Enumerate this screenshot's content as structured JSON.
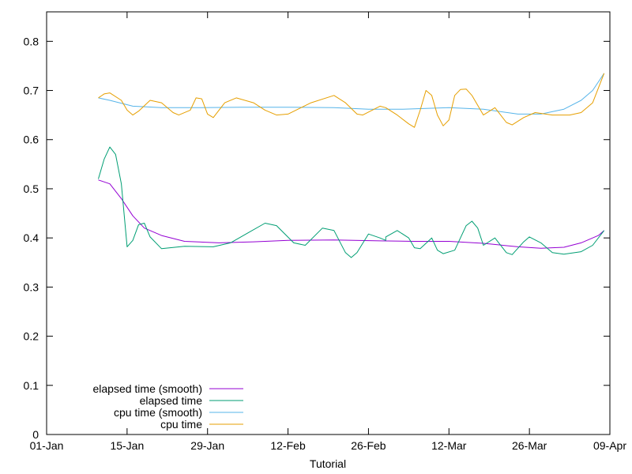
{
  "chart_data": {
    "type": "line",
    "xlabel": "Tutorial",
    "ylabel": "",
    "x_tick_labels": [
      "01-Jan",
      "15-Jan",
      "29-Jan",
      "12-Feb",
      "26-Feb",
      "12-Mar",
      "26-Mar",
      "09-Apr"
    ],
    "y_tick_labels": [
      "0",
      "0.1",
      "0.2",
      "0.3",
      "0.4",
      "0.5",
      "0.6",
      "0.7",
      "0.8"
    ],
    "y_ticks": [
      0,
      0.1,
      0.2,
      0.3,
      0.4,
      0.5,
      0.6,
      0.7,
      0.8
    ],
    "xlim": [
      "2023-01-01",
      "2023-04-09"
    ],
    "ylim": [
      0,
      0.86
    ],
    "grid": false,
    "legend_position": "bottom-left",
    "series": [
      {
        "name": "elapsed time (smooth)",
        "color": "#9400d3",
        "points": [
          [
            "2023-01-10",
            0.518
          ],
          [
            "2023-01-12",
            0.51
          ],
          [
            "2023-01-14",
            0.48
          ],
          [
            "2023-01-16",
            0.445
          ],
          [
            "2023-01-18",
            0.42
          ],
          [
            "2023-01-21",
            0.405
          ],
          [
            "2023-01-25",
            0.393
          ],
          [
            "2023-01-31",
            0.39
          ],
          [
            "2023-02-06",
            0.392
          ],
          [
            "2023-02-12",
            0.395
          ],
          [
            "2023-02-20",
            0.396
          ],
          [
            "2023-02-28",
            0.394
          ],
          [
            "2023-03-06",
            0.393
          ],
          [
            "2023-03-12",
            0.393
          ],
          [
            "2023-03-18",
            0.389
          ],
          [
            "2023-03-24",
            0.382
          ],
          [
            "2023-03-28",
            0.379
          ],
          [
            "2023-04-01",
            0.381
          ],
          [
            "2023-04-04",
            0.39
          ],
          [
            "2023-04-07",
            0.405
          ],
          [
            "2023-04-08",
            0.415
          ]
        ]
      },
      {
        "name": "elapsed time",
        "color": "#009e73",
        "points": [
          [
            "2023-01-10",
            0.52
          ],
          [
            "2023-01-11",
            0.56
          ],
          [
            "2023-01-12",
            0.585
          ],
          [
            "2023-01-13",
            0.57
          ],
          [
            "2023-01-14",
            0.51
          ],
          [
            "2023-01-15",
            0.382
          ],
          [
            "2023-01-16",
            0.395
          ],
          [
            "2023-01-17",
            0.427
          ],
          [
            "2023-01-18",
            0.43
          ],
          [
            "2023-01-19",
            0.402
          ],
          [
            "2023-01-21",
            0.378
          ],
          [
            "2023-01-25",
            0.383
          ],
          [
            "2023-01-30",
            0.382
          ],
          [
            "2023-02-02",
            0.39
          ],
          [
            "2023-02-05",
            0.41
          ],
          [
            "2023-02-08",
            0.43
          ],
          [
            "2023-02-10",
            0.425
          ],
          [
            "2023-02-13",
            0.39
          ],
          [
            "2023-02-15",
            0.385
          ],
          [
            "2023-02-18",
            0.42
          ],
          [
            "2023-02-20",
            0.415
          ],
          [
            "2023-02-22",
            0.37
          ],
          [
            "2023-02-23",
            0.36
          ],
          [
            "2023-02-24",
            0.37
          ],
          [
            "2023-02-26",
            0.408
          ],
          [
            "2023-02-28",
            0.4
          ],
          [
            "2023-02-29",
            0.395
          ],
          [
            "2023-03-01",
            0.402
          ],
          [
            "2023-03-03",
            0.415
          ],
          [
            "2023-03-05",
            0.4
          ],
          [
            "2023-03-06",
            0.38
          ],
          [
            "2023-03-07",
            0.378
          ],
          [
            "2023-03-09",
            0.4
          ],
          [
            "2023-03-10",
            0.375
          ],
          [
            "2023-03-11",
            0.368
          ],
          [
            "2023-03-13",
            0.375
          ],
          [
            "2023-03-15",
            0.425
          ],
          [
            "2023-03-16",
            0.434
          ],
          [
            "2023-03-17",
            0.42
          ],
          [
            "2023-03-18",
            0.385
          ],
          [
            "2023-03-20",
            0.4
          ],
          [
            "2023-03-22",
            0.37
          ],
          [
            "2023-03-23",
            0.366
          ],
          [
            "2023-03-25",
            0.392
          ],
          [
            "2023-03-26",
            0.402
          ],
          [
            "2023-03-28",
            0.39
          ],
          [
            "2023-03-30",
            0.37
          ],
          [
            "2023-04-01",
            0.367
          ],
          [
            "2023-04-04",
            0.372
          ],
          [
            "2023-04-06",
            0.385
          ],
          [
            "2023-04-08",
            0.415
          ]
        ]
      },
      {
        "name": "cpu time (smooth)",
        "color": "#56b4e9",
        "points": [
          [
            "2023-01-10",
            0.685
          ],
          [
            "2023-01-12",
            0.68
          ],
          [
            "2023-01-16",
            0.668
          ],
          [
            "2023-01-21",
            0.665
          ],
          [
            "2023-01-27",
            0.665
          ],
          [
            "2023-02-04",
            0.666
          ],
          [
            "2023-02-12",
            0.666
          ],
          [
            "2023-02-20",
            0.665
          ],
          [
            "2023-02-26",
            0.662
          ],
          [
            "2023-03-04",
            0.662
          ],
          [
            "2023-03-12",
            0.665
          ],
          [
            "2023-03-18",
            0.662
          ],
          [
            "2023-03-24",
            0.652
          ],
          [
            "2023-03-28",
            0.652
          ],
          [
            "2023-04-01",
            0.662
          ],
          [
            "2023-04-04",
            0.68
          ],
          [
            "2023-04-06",
            0.7
          ],
          [
            "2023-04-08",
            0.735
          ]
        ]
      },
      {
        "name": "cpu time",
        "color": "#e69f00",
        "points": [
          [
            "2023-01-10",
            0.685
          ],
          [
            "2023-01-11",
            0.693
          ],
          [
            "2023-01-12",
            0.695
          ],
          [
            "2023-01-14",
            0.68
          ],
          [
            "2023-01-15",
            0.66
          ],
          [
            "2023-01-16",
            0.65
          ],
          [
            "2023-01-17",
            0.658
          ],
          [
            "2023-01-19",
            0.68
          ],
          [
            "2023-01-21",
            0.675
          ],
          [
            "2023-01-23",
            0.655
          ],
          [
            "2023-01-24",
            0.65
          ],
          [
            "2023-01-26",
            0.66
          ],
          [
            "2023-01-27",
            0.685
          ],
          [
            "2023-01-28",
            0.683
          ],
          [
            "2023-01-29",
            0.652
          ],
          [
            "2023-01-30",
            0.645
          ],
          [
            "2023-02-01",
            0.675
          ],
          [
            "2023-02-03",
            0.685
          ],
          [
            "2023-02-06",
            0.675
          ],
          [
            "2023-02-08",
            0.66
          ],
          [
            "2023-02-10",
            0.65
          ],
          [
            "2023-02-12",
            0.652
          ],
          [
            "2023-02-16",
            0.675
          ],
          [
            "2023-02-20",
            0.69
          ],
          [
            "2023-02-22",
            0.675
          ],
          [
            "2023-02-24",
            0.652
          ],
          [
            "2023-02-25",
            0.65
          ],
          [
            "2023-02-28",
            0.668
          ],
          [
            "2023-03-01",
            0.665
          ],
          [
            "2023-03-03",
            0.65
          ],
          [
            "2023-03-05",
            0.632
          ],
          [
            "2023-03-06",
            0.625
          ],
          [
            "2023-03-07",
            0.66
          ],
          [
            "2023-03-08",
            0.7
          ],
          [
            "2023-03-09",
            0.69
          ],
          [
            "2023-03-10",
            0.65
          ],
          [
            "2023-03-11",
            0.628
          ],
          [
            "2023-03-12",
            0.64
          ],
          [
            "2023-03-13",
            0.69
          ],
          [
            "2023-03-14",
            0.702
          ],
          [
            "2023-03-15",
            0.703
          ],
          [
            "2023-03-16",
            0.69
          ],
          [
            "2023-03-18",
            0.65
          ],
          [
            "2023-03-20",
            0.665
          ],
          [
            "2023-03-22",
            0.635
          ],
          [
            "2023-03-23",
            0.63
          ],
          [
            "2023-03-25",
            0.645
          ],
          [
            "2023-03-27",
            0.655
          ],
          [
            "2023-03-30",
            0.65
          ],
          [
            "2023-04-02",
            0.65
          ],
          [
            "2023-04-04",
            0.655
          ],
          [
            "2023-04-06",
            0.675
          ],
          [
            "2023-04-08",
            0.735
          ]
        ]
      }
    ]
  }
}
